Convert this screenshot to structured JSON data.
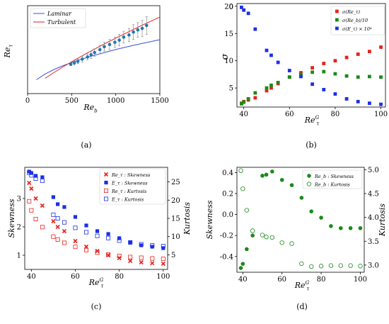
{
  "chart_data": [
    {
      "id": "a",
      "type": "line",
      "xlabel": "Re_b",
      "ylabel": "Re_τ",
      "xlim": [
        0,
        1500
      ],
      "ylim": [
        0,
        120
      ],
      "xticks": [
        "0",
        "500",
        "1000",
        "1500"
      ],
      "yticks": [],
      "caption": "(a)",
      "legend_position": "top-left",
      "series": [
        {
          "name": "Laminar",
          "kind": "line",
          "color": "#3b4fe0",
          "x": [
            100,
            200,
            300,
            400,
            500,
            600,
            700,
            800,
            900,
            1000,
            1100,
            1200,
            1300,
            1400,
            1500
          ],
          "y": [
            19.0,
            26.8,
            32.9,
            38.0,
            42.4,
            46.5,
            50.2,
            53.7,
            57.0,
            60.1,
            63.0,
            65.8,
            68.5,
            71.0,
            73.5
          ]
        },
        {
          "name": "Turbulent",
          "kind": "line",
          "color": "#e02020",
          "x": [
            200,
            300,
            400,
            500,
            600,
            700,
            800,
            900,
            1000,
            1100,
            1200,
            1300,
            1400,
            1500
          ],
          "y": [
            20.8,
            28.8,
            36.3,
            43.5,
            50.3,
            56.9,
            63.3,
            69.6,
            75.7,
            81.6,
            87.5,
            93.3,
            98.9,
            104.5
          ]
        },
        {
          "name": "",
          "kind": "scatter_errorbar",
          "color": "#1f77b4",
          "x": [
            490,
            530,
            570,
            620,
            680,
            720,
            760,
            820,
            870,
            930,
            990,
            1040,
            1090,
            1150,
            1200,
            1250,
            1300,
            1350
          ],
          "y": [
            40,
            42,
            44,
            47,
            50,
            53,
            56,
            60,
            64,
            67,
            70,
            73,
            77,
            80,
            84,
            87,
            89,
            93
          ],
          "err": [
            2,
            3,
            3,
            4,
            4,
            5,
            5,
            6,
            6,
            7,
            7,
            8,
            8,
            9,
            10,
            10,
            11,
            12
          ]
        }
      ]
    },
    {
      "id": "b",
      "type": "scatter",
      "xlabel": "Re_τ^G",
      "ylabel": "σ",
      "xlim": [
        37,
        102
      ],
      "ylim": [
        1.5,
        20.5
      ],
      "xticks": [
        40,
        60,
        80,
        100
      ],
      "yticks": [
        5,
        10,
        15,
        20
      ],
      "caption": "(b)",
      "legend_position": "top-right",
      "series": [
        {
          "name": "σ(Re_τ)",
          "color": "#e8221c",
          "x": [
            39,
            40,
            42,
            45,
            50,
            52,
            55,
            60,
            65,
            70,
            75,
            80,
            85,
            90,
            95,
            100
          ],
          "y": [
            2.2,
            2.5,
            2.8,
            3.2,
            4.5,
            5.0,
            5.8,
            7.0,
            7.8,
            8.7,
            9.5,
            10.0,
            10.6,
            11.2,
            11.7,
            12.5
          ]
        },
        {
          "name": "σ(Re_b)/10",
          "color": "#1a8a1a",
          "x": [
            39,
            40,
            42,
            45,
            50,
            52,
            55,
            60,
            65,
            70,
            75,
            80,
            85,
            90,
            95,
            100
          ],
          "y": [
            2.1,
            2.4,
            3.0,
            4.1,
            5.0,
            5.5,
            6.0,
            7.0,
            7.5,
            7.9,
            8.0,
            7.6,
            7.2,
            7.0,
            7.1,
            7.0
          ]
        },
        {
          "name": "σ(E_τ) × 10^4",
          "color": "#1c2fe8",
          "x": [
            39,
            40,
            42,
            45,
            50,
            52,
            55,
            60,
            65,
            70,
            75,
            80,
            85,
            90,
            95,
            100
          ],
          "y": [
            19.8,
            19.3,
            18.7,
            15.8,
            11.9,
            11.0,
            9.7,
            8.2,
            7.1,
            5.7,
            4.7,
            3.9,
            3.0,
            2.5,
            2.2,
            2.0
          ]
        }
      ]
    },
    {
      "id": "c",
      "type": "scatter",
      "xlabel": "Re_τ^G",
      "ylabel": "Skewness",
      "ylabel_right": "Kurtosis",
      "xlim": [
        37,
        102
      ],
      "ylim": [
        0.5,
        4.1
      ],
      "yticks": [
        1,
        2,
        3
      ],
      "y2lim": [
        1.0,
        29.0
      ],
      "y2ticks": [
        5,
        10,
        15,
        20,
        25
      ],
      "xticks": [
        40,
        60,
        80,
        100
      ],
      "caption": "(c)",
      "legend_position": "top-right",
      "series": [
        {
          "name": "Re_τ : Skewness",
          "marker": "x",
          "color": "#e8221c",
          "axis": "left",
          "x": [
            39,
            40,
            42,
            45,
            50,
            52,
            55,
            60,
            65,
            70,
            75,
            80,
            85,
            90,
            95,
            100
          ],
          "y": [
            3.55,
            3.35,
            3.0,
            2.75,
            2.2,
            2.0,
            1.85,
            1.5,
            1.3,
            1.15,
            1.0,
            0.9,
            0.8,
            0.75,
            0.72,
            0.7
          ]
        },
        {
          "name": "E_τ : Skewness",
          "marker": "square",
          "color": "#1c2fe8",
          "axis": "left",
          "x": [
            39,
            40,
            42,
            45,
            50,
            52,
            55,
            60,
            65,
            70,
            75,
            80,
            85,
            90,
            95,
            100
          ],
          "y": [
            3.95,
            3.9,
            3.8,
            3.75,
            3.05,
            2.8,
            2.7,
            2.35,
            2.05,
            1.85,
            1.75,
            1.6,
            1.45,
            1.35,
            1.3,
            1.25
          ]
        },
        {
          "name": "Re_τ : Kurtosis",
          "marker": "open-square",
          "color": "#e8221c",
          "axis": "right",
          "x": [
            39,
            40,
            42,
            45,
            50,
            52,
            55,
            60,
            65,
            70,
            75,
            80,
            85,
            90,
            95,
            100
          ],
          "y": [
            19.7,
            17.2,
            14.8,
            12.6,
            10.0,
            9.2,
            8.3,
            7.2,
            6.3,
            5.6,
            5.1,
            4.7,
            4.4,
            4.2,
            4.0,
            3.9
          ]
        },
        {
          "name": "E_τ : Kurtosis",
          "marker": "open-square",
          "color": "#1c2fe8",
          "axis": "right",
          "x": [
            39,
            40,
            42,
            45,
            50,
            52,
            55,
            60,
            65,
            70,
            75,
            80,
            85,
            90,
            95,
            100
          ],
          "y": [
            27.5,
            26.8,
            25.9,
            25.3,
            16.0,
            15.0,
            13.9,
            12.4,
            11.2,
            10.2,
            9.6,
            8.9,
            8.4,
            7.9,
            7.6,
            7.4
          ]
        }
      ]
    },
    {
      "id": "d",
      "type": "scatter",
      "xlabel": "Re_τ^G",
      "ylabel": "Skewness",
      "ylabel_right": "Kurtosis",
      "xlim": [
        37,
        102
      ],
      "ylim": [
        -0.55,
        0.45
      ],
      "yticks": [
        -0.4,
        -0.2,
        0.0,
        0.2,
        0.4
      ],
      "y2lim": [
        2.85,
        5.05
      ],
      "y2ticks": [
        3.0,
        3.5,
        4.0,
        4.5,
        5.0
      ],
      "xticks": [
        40,
        60,
        80,
        100
      ],
      "caption": "(d)",
      "legend_position": "top-right",
      "series": [
        {
          "name": "Re_b : Skewness",
          "marker": "filled-circle",
          "color": "#1a8a1a",
          "axis": "left",
          "x": [
            39,
            40,
            42,
            45,
            50,
            52,
            55,
            60,
            65,
            70,
            75,
            80,
            85,
            90,
            95,
            100
          ],
          "y": [
            -0.51,
            -0.47,
            -0.33,
            -0.2,
            0.37,
            0.38,
            0.41,
            0.33,
            0.28,
            0.16,
            0.03,
            -0.03,
            -0.11,
            -0.13,
            -0.13,
            -0.13
          ]
        },
        {
          "name": "Re_b : Kurtosis",
          "marker": "open-circle",
          "color": "#1a8a1a",
          "axis": "right",
          "x": [
            39,
            40,
            42,
            45,
            50,
            52,
            55,
            60,
            65,
            70,
            75,
            80,
            85,
            90,
            95,
            100
          ],
          "y": [
            4.98,
            4.6,
            4.15,
            3.72,
            3.63,
            3.59,
            3.58,
            3.47,
            3.45,
            3.03,
            2.97,
            2.98,
            2.99,
            2.99,
            2.99,
            2.98
          ]
        }
      ]
    }
  ]
}
